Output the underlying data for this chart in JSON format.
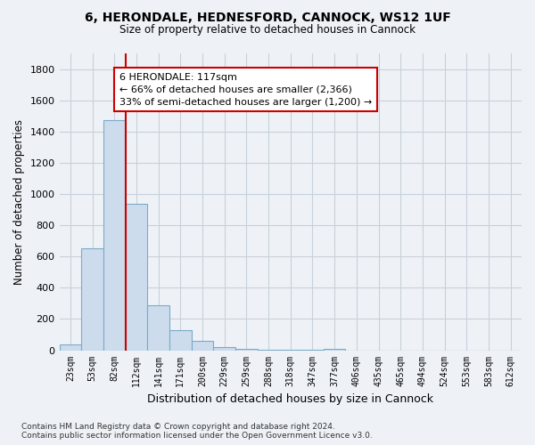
{
  "title1": "6, HERONDALE, HEDNESFORD, CANNOCK, WS12 1UF",
  "title2": "Size of property relative to detached houses in Cannock",
  "xlabel": "Distribution of detached houses by size in Cannock",
  "ylabel": "Number of detached properties",
  "bar_labels": [
    "23sqm",
    "53sqm",
    "82sqm",
    "112sqm",
    "141sqm",
    "171sqm",
    "200sqm",
    "229sqm",
    "259sqm",
    "288sqm",
    "318sqm",
    "347sqm",
    "377sqm",
    "406sqm",
    "435sqm",
    "465sqm",
    "494sqm",
    "524sqm",
    "553sqm",
    "583sqm",
    "612sqm"
  ],
  "bar_values": [
    38,
    650,
    1470,
    935,
    290,
    128,
    62,
    22,
    10,
    5,
    2,
    1,
    10,
    0,
    0,
    0,
    0,
    0,
    0,
    0,
    0
  ],
  "bar_color": "#ccdcec",
  "bar_edge_color": "#7aaac8",
  "grid_color": "#c8d0da",
  "bg_color": "#eef2f7",
  "vline_color": "#cc0000",
  "annotation_text": "6 HERONDALE: 117sqm\n← 66% of detached houses are smaller (2,366)\n33% of semi-detached houses are larger (1,200) →",
  "annotation_box_color": "#ffffff",
  "annotation_box_edge_color": "#cc0000",
  "ylim": [
    0,
    1900
  ],
  "yticks": [
    0,
    200,
    400,
    600,
    800,
    1000,
    1200,
    1400,
    1600,
    1800
  ],
  "footnote": "Contains HM Land Registry data © Crown copyright and database right 2024.\nContains public sector information licensed under the Open Government Licence v3.0.",
  "vline_index": 3
}
